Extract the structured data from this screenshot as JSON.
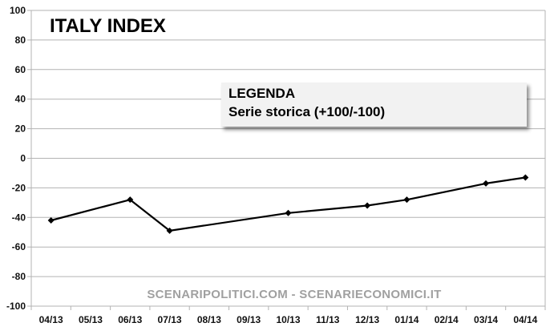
{
  "chart_data": {
    "type": "line",
    "title": "ITALY INDEX",
    "categories": [
      "04/13",
      "05/13",
      "06/13",
      "07/13",
      "08/13",
      "09/13",
      "10/13",
      "11/13",
      "12/13",
      "01/14",
      "02/14",
      "03/14",
      "04/14"
    ],
    "series": [
      {
        "values": [
          -42,
          null,
          -28,
          -49,
          null,
          null,
          -37,
          null,
          -32,
          -28,
          null,
          -17,
          -13
        ]
      }
    ],
    "ylim": [
      -100,
      100
    ],
    "yticks": [
      100,
      80,
      60,
      40,
      20,
      0,
      -20,
      -40,
      -60,
      -80,
      -100
    ],
    "grid": true,
    "line_color": "#000000",
    "grid_color": "#b3b3b3"
  },
  "legend_box": {
    "heading": "LEGENDA",
    "text": "Serie storica (+100/-100)"
  },
  "watermark": "SCENARIPOLITICI.COM - SCENARIECONOMICI.IT"
}
